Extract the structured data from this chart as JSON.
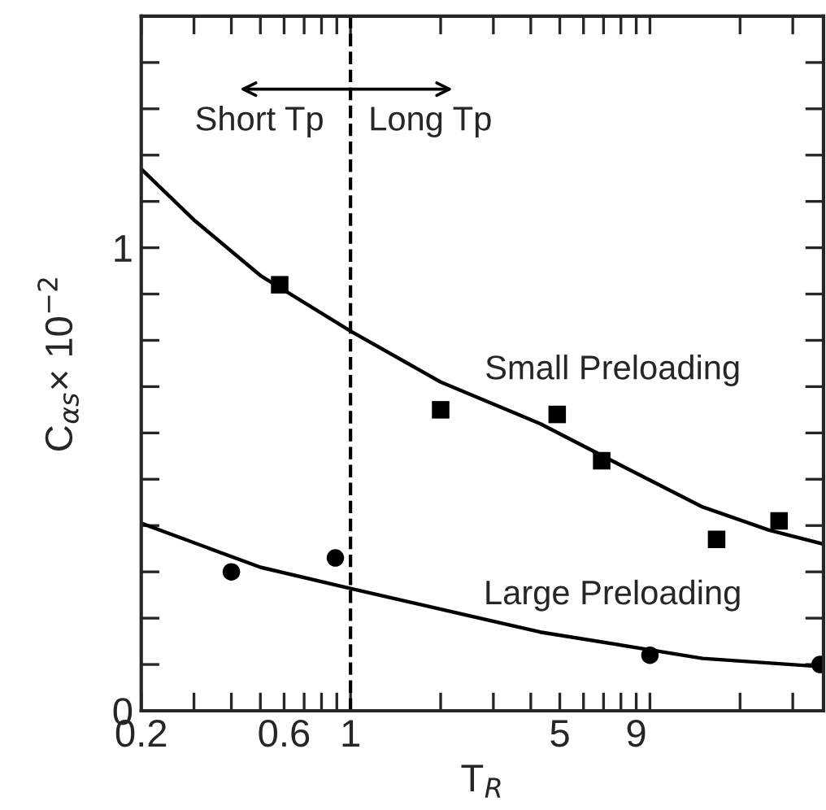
{
  "chart_data": {
    "type": "scatter",
    "xlabel": "T$_{R}$",
    "ylabel": "C$_{αs}$× 10$^{−2}$",
    "log": "x",
    "xlim": [
      0.2,
      38
    ],
    "ylim": [
      0,
      1.5
    ],
    "xticks": [
      0.2,
      {
        "value": 0.3,
        "label": null
      },
      {
        "value": 0.4,
        "label": null
      },
      {
        "value": 0.5,
        "label": null
      },
      0.6,
      {
        "value": 0.7,
        "label": null
      },
      {
        "value": 0.8,
        "label": null
      },
      {
        "value": 0.9,
        "label": null
      },
      1,
      {
        "value": 2,
        "label": null
      },
      {
        "value": 3,
        "label": null
      },
      {
        "value": 4,
        "label": null
      },
      5,
      {
        "value": 6,
        "label": null
      },
      {
        "value": 7,
        "label": null
      },
      {
        "value": 8,
        "label": null
      },
      9,
      {
        "value": 10,
        "label": null
      },
      {
        "value": 20,
        "label": null
      },
      {
        "value": 30,
        "label": null
      }
    ],
    "yticks": [
      0,
      {
        "value": 0.1,
        "label": null
      },
      {
        "value": 0.2,
        "label": null
      },
      {
        "value": 0.3,
        "label": null
      },
      {
        "value": 0.4,
        "label": null
      },
      {
        "value": 0.5,
        "label": null
      },
      {
        "value": 0.6,
        "label": null
      },
      {
        "value": 0.7,
        "label": null
      },
      {
        "value": 0.8,
        "label": null
      },
      {
        "value": 0.9,
        "label": null
      },
      1,
      {
        "value": 1.1,
        "label": null
      },
      {
        "value": 1.2,
        "label": null
      },
      {
        "value": 1.3,
        "label": null
      },
      {
        "value": 1.4,
        "label": null
      }
    ],
    "grid": false,
    "legend": false,
    "series": [
      {
        "marker": "square",
        "color": "#000000",
        "x": [
          0.58,
          2,
          4.9,
          6.9,
          16.7,
          27
        ],
        "values": [
          0.92,
          0.65,
          0.64,
          0.54,
          0.37,
          0.41
        ]
      },
      {
        "marker": "circle",
        "color": "#000000",
        "x": [
          0.4,
          0.89,
          10,
          37
        ],
        "values": [
          0.3,
          0.33,
          0.12,
          0.1
        ]
      },
      {
        "type": "line",
        "marker": "none",
        "color": "#000000",
        "x": [
          0.2,
          0.3,
          0.5,
          1,
          2,
          4.3,
          8,
          15,
          25,
          38
        ],
        "values": [
          1.17,
          1.06,
          0.94,
          0.82,
          0.71,
          0.62,
          0.53,
          0.44,
          0.39,
          0.36
        ]
      },
      {
        "type": "line",
        "marker": "none",
        "color": "#000000",
        "x": [
          0.2,
          0.5,
          1,
          4.3,
          15,
          38
        ],
        "values": [
          0.405,
          0.31,
          0.264,
          0.17,
          0.113,
          0.095
        ]
      }
    ],
    "ref_lines": [
      {
        "axis": "x",
        "value": 1,
        "line_style": "dashed",
        "color": "#000000"
      }
    ],
    "annotations": [
      "Short Tp",
      "Long Tp",
      "Small Preloading",
      "Large Preloading"
    ]
  }
}
